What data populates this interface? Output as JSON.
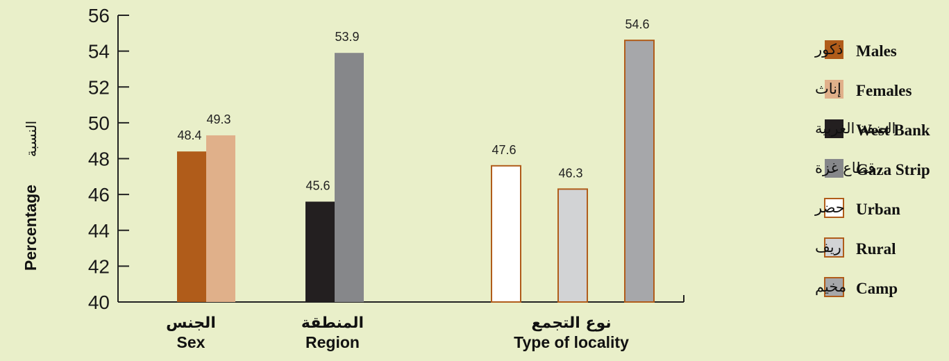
{
  "chart_data": {
    "type": "bar",
    "ylabel": "Percentage",
    "ylabel_ar": "النسبة",
    "ylim": [
      40,
      56
    ],
    "yticks": [
      40,
      42,
      44,
      46,
      48,
      50,
      52,
      54,
      56
    ],
    "grid": false,
    "legend_position": "right",
    "groups": [
      {
        "label_ar": "الجنس",
        "label_en": "Sex",
        "bars": [
          {
            "key": "males",
            "value": 48.4,
            "label": "48.4"
          },
          {
            "key": "females",
            "value": 49.3,
            "label": "49.3"
          }
        ]
      },
      {
        "label_ar": "المنطقة",
        "label_en": "Region",
        "bars": [
          {
            "key": "west_bank",
            "value": 45.6,
            "label": "45.6"
          },
          {
            "key": "gaza_strip",
            "value": 53.9,
            "label": "53.9"
          }
        ]
      },
      {
        "label_ar": "نوع التجمع",
        "label_en": "Type of locality",
        "bars": [
          {
            "key": "urban",
            "value": 47.6,
            "label": "47.6"
          },
          {
            "key": "rural",
            "value": 46.3,
            "label": "46.3"
          },
          {
            "key": "camp",
            "value": 54.6,
            "label": "54.6"
          }
        ]
      }
    ],
    "series": [
      {
        "key": "males",
        "name": "Males",
        "name_ar": "ذكور",
        "color": "#b05c1a",
        "stroke": "none"
      },
      {
        "key": "females",
        "name": "Females",
        "name_ar": "إناث",
        "color": "#e0b08a",
        "stroke": "none"
      },
      {
        "key": "west_bank",
        "name": "West Bank",
        "name_ar": "الضفة الغربية",
        "color": "#231f20",
        "stroke": "none"
      },
      {
        "key": "gaza_strip",
        "name": "Gaza Strip",
        "name_ar": "قطاع غزة",
        "color": "#86878a",
        "stroke": "none"
      },
      {
        "key": "urban",
        "name": "Urban",
        "name_ar": "حضر",
        "color": "#ffffff",
        "stroke": "#b05c1a"
      },
      {
        "key": "rural",
        "name": "Rural",
        "name_ar": "ريف",
        "color": "#d2d3d5",
        "stroke": "#b05c1a"
      },
      {
        "key": "camp",
        "name": "Camp",
        "name_ar": "مخيم",
        "color": "#a6a7aa",
        "stroke": "#b05c1a"
      }
    ]
  }
}
